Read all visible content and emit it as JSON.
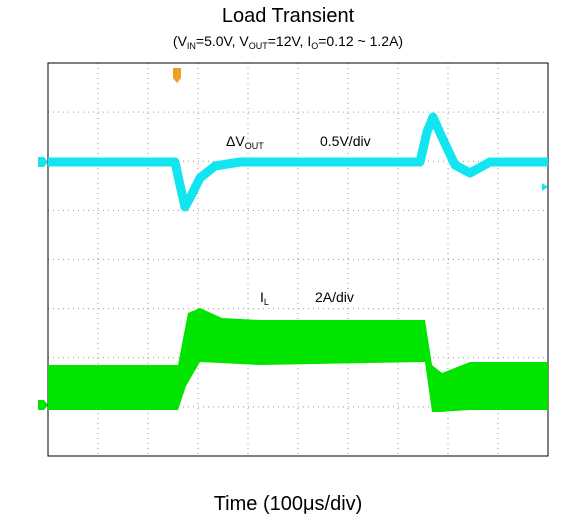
{
  "header": {
    "title": "Load Transient",
    "subtitle": [
      "(V",
      "IN",
      "=5.0V, V",
      "OUT",
      "=12V, I",
      "O",
      "=0.12 ~ 1.2A)"
    ]
  },
  "traces": [
    {
      "label": [
        "ΔV",
        "OUT"
      ],
      "scale": "0.5V/div"
    },
    {
      "label": [
        "I",
        "L"
      ],
      "scale": "2A/div"
    }
  ],
  "x_label": "Time (100μs/div)"
}
